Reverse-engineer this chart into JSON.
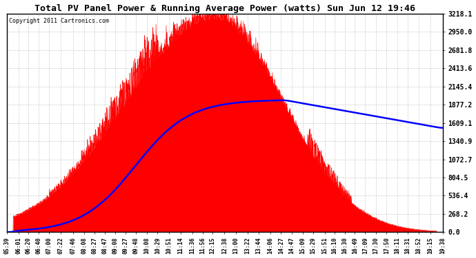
{
  "title": "Total PV Panel Power & Running Average Power (watts) Sun Jun 12 19:46",
  "copyright": "Copyright 2011 Cartronics.com",
  "y_tick_labels": [
    "0.0",
    "268.2",
    "536.4",
    "804.5",
    "1072.7",
    "1340.9",
    "1609.1",
    "1877.2",
    "2145.4",
    "2413.6",
    "2681.8",
    "2950.0",
    "3218.1"
  ],
  "y_max": 3218.1,
  "y_min": 0.0,
  "background_color": "#ffffff",
  "grid_color": "#cccccc",
  "fill_color": "#ff0000",
  "avg_line_color": "#0000ff",
  "x_labels": [
    "05:39",
    "06:01",
    "06:20",
    "06:40",
    "07:00",
    "07:22",
    "07:46",
    "08:08",
    "08:27",
    "08:47",
    "09:08",
    "09:27",
    "09:48",
    "10:08",
    "10:29",
    "10:51",
    "11:14",
    "11:36",
    "11:56",
    "12:15",
    "12:38",
    "13:00",
    "13:22",
    "13:44",
    "14:06",
    "14:27",
    "14:47",
    "15:09",
    "15:29",
    "15:51",
    "16:10",
    "16:30",
    "16:49",
    "17:09",
    "17:30",
    "17:50",
    "18:11",
    "18:31",
    "18:52",
    "19:15",
    "19:38"
  ],
  "figsize": [
    6.9,
    3.75
  ],
  "dpi": 100
}
